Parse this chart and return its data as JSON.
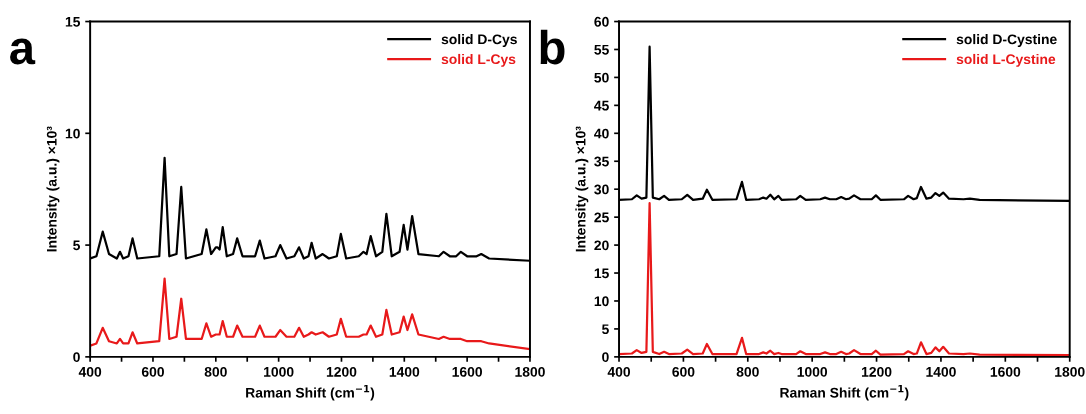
{
  "chart_data": [
    {
      "type": "line",
      "xlabel": "Raman Shift (cm$^{−1}$)",
      "ylabel": "Intensity (a.u.) ×10³",
      "annotations": [
        "a"
      ],
      "xlim": [
        400,
        1800
      ],
      "xticks": [
        400,
        {
          "value": 500,
          "label": null
        },
        600,
        {
          "value": 700,
          "label": null
        },
        800,
        {
          "value": 900,
          "label": null
        },
        1000,
        {
          "value": 1100,
          "label": null
        },
        1200,
        {
          "value": 1300,
          "label": null
        },
        1400,
        {
          "value": 1500,
          "label": null
        },
        1600,
        {
          "value": 1700,
          "label": null
        },
        1800
      ],
      "ylim": [
        0,
        15
      ],
      "yticks": [
        0,
        5,
        10,
        15
      ],
      "legend": "top right",
      "grid": false,
      "line_style": "solid",
      "series": [
        {
          "name": "solid D-Cys",
          "color": "#000000",
          "x": [
            400,
            420,
            440,
            460,
            485,
            495,
            505,
            522,
            535,
            550,
            620,
            637,
            652,
            675,
            690,
            705,
            755,
            770,
            785,
            800,
            805,
            812,
            822,
            835,
            855,
            868,
            885,
            925,
            940,
            955,
            990,
            1005,
            1025,
            1050,
            1065,
            1080,
            1095,
            1105,
            1118,
            1140,
            1160,
            1185,
            1198,
            1215,
            1255,
            1270,
            1280,
            1293,
            1310,
            1330,
            1343,
            1360,
            1385,
            1398,
            1410,
            1425,
            1445,
            1510,
            1525,
            1545,
            1565,
            1580,
            1600,
            1630,
            1645,
            1670,
            1800
          ],
          "values": [
            4.4,
            4.5,
            5.6,
            4.6,
            4.4,
            4.7,
            4.4,
            4.5,
            5.3,
            4.4,
            4.5,
            8.9,
            4.5,
            4.6,
            7.6,
            4.4,
            4.6,
            5.7,
            4.6,
            4.9,
            4.9,
            4.8,
            5.8,
            4.5,
            4.6,
            5.3,
            4.5,
            4.5,
            5.2,
            4.4,
            4.5,
            5.0,
            4.4,
            4.5,
            4.9,
            4.4,
            4.5,
            5.1,
            4.4,
            4.6,
            4.4,
            4.5,
            5.5,
            4.4,
            4.5,
            4.7,
            4.6,
            5.4,
            4.5,
            4.7,
            6.4,
            4.5,
            4.7,
            5.9,
            4.8,
            6.3,
            4.6,
            4.5,
            4.7,
            4.5,
            4.5,
            4.7,
            4.5,
            4.5,
            4.6,
            4.4,
            4.3
          ]
        },
        {
          "name": "solid L-Cys",
          "color": "#e8191a",
          "x": [
            400,
            420,
            440,
            460,
            485,
            495,
            505,
            522,
            535,
            550,
            620,
            637,
            652,
            675,
            690,
            705,
            755,
            770,
            785,
            800,
            805,
            812,
            822,
            835,
            855,
            868,
            885,
            925,
            940,
            955,
            990,
            1005,
            1025,
            1050,
            1065,
            1080,
            1095,
            1105,
            1118,
            1140,
            1160,
            1185,
            1198,
            1215,
            1255,
            1270,
            1280,
            1293,
            1310,
            1330,
            1343,
            1360,
            1385,
            1398,
            1410,
            1425,
            1445,
            1510,
            1525,
            1545,
            1565,
            1580,
            1600,
            1630,
            1645,
            1670,
            1800
          ],
          "values": [
            0.5,
            0.6,
            1.3,
            0.7,
            0.6,
            0.8,
            0.6,
            0.6,
            1.1,
            0.6,
            0.7,
            3.5,
            0.8,
            0.9,
            2.6,
            0.8,
            0.8,
            1.5,
            0.9,
            1.0,
            1.0,
            1.0,
            1.6,
            0.9,
            0.9,
            1.4,
            0.9,
            0.9,
            1.4,
            0.9,
            0.9,
            1.2,
            0.9,
            0.9,
            1.3,
            0.9,
            1.0,
            1.1,
            1.0,
            1.1,
            0.9,
            1.0,
            1.7,
            0.9,
            0.9,
            1.0,
            1.0,
            1.4,
            0.9,
            1.0,
            2.1,
            1.0,
            1.1,
            1.8,
            1.2,
            1.9,
            1.0,
            0.8,
            0.9,
            0.8,
            0.8,
            0.8,
            0.7,
            0.7,
            0.7,
            0.6,
            0.35
          ]
        }
      ]
    },
    {
      "type": "line",
      "xlabel": "Raman Shift (cm$^{−1}$)",
      "ylabel": "Intensity (a.u.) ×10³",
      "annotations": [
        "b"
      ],
      "xlim": [
        400,
        1800
      ],
      "xticks": [
        400,
        {
          "value": 500,
          "label": null
        },
        600,
        {
          "value": 700,
          "label": null
        },
        800,
        {
          "value": 900,
          "label": null
        },
        1000,
        {
          "value": 1100,
          "label": null
        },
        1200,
        {
          "value": 1300,
          "label": null
        },
        1400,
        {
          "value": 1500,
          "label": null
        },
        1600,
        {
          "value": 1700,
          "label": null
        },
        1800
      ],
      "ylim": [
        0,
        60
      ],
      "yticks": [
        0,
        5,
        10,
        15,
        20,
        25,
        30,
        35,
        40,
        45,
        50,
        55,
        60
      ],
      "legend": "top right",
      "grid": false,
      "line_style": "solid",
      "series": [
        {
          "name": "solid D-Cystine",
          "color": "#000000",
          "x": [
            400,
            440,
            455,
            470,
            485,
            495,
            505,
            525,
            540,
            555,
            595,
            612,
            630,
            660,
            673,
            690,
            765,
            782,
            795,
            835,
            848,
            858,
            870,
            882,
            895,
            905,
            950,
            963,
            980,
            1025,
            1040,
            1055,
            1075,
            1090,
            1105,
            1115,
            1130,
            1150,
            1185,
            1198,
            1212,
            1285,
            1298,
            1315,
            1325,
            1338,
            1355,
            1370,
            1383,
            1395,
            1407,
            1425,
            1470,
            1490,
            1520,
            1800
          ],
          "values": [
            28.1,
            28.2,
            28.9,
            28.3,
            28.5,
            55.5,
            28.5,
            28.2,
            28.8,
            28.1,
            28.2,
            29.0,
            28.1,
            28.3,
            29.9,
            28.1,
            28.2,
            31.3,
            28.1,
            28.2,
            28.5,
            28.3,
            29.0,
            28.2,
            28.8,
            28.1,
            28.2,
            28.8,
            28.1,
            28.2,
            28.5,
            28.2,
            28.2,
            28.6,
            28.2,
            28.3,
            28.9,
            28.2,
            28.2,
            28.9,
            28.1,
            28.2,
            28.8,
            28.2,
            28.4,
            30.4,
            28.3,
            28.5,
            29.3,
            28.8,
            29.4,
            28.3,
            28.2,
            28.3,
            28.1,
            27.9
          ]
        },
        {
          "name": "solid L-Cystine",
          "color": "#e8191a",
          "x": [
            400,
            440,
            455,
            470,
            485,
            495,
            505,
            525,
            540,
            555,
            595,
            612,
            630,
            660,
            673,
            690,
            765,
            782,
            795,
            835,
            848,
            858,
            870,
            882,
            895,
            905,
            950,
            963,
            980,
            1025,
            1040,
            1055,
            1075,
            1090,
            1105,
            1115,
            1130,
            1150,
            1185,
            1198,
            1212,
            1285,
            1298,
            1315,
            1325,
            1338,
            1355,
            1370,
            1383,
            1395,
            1407,
            1425,
            1470,
            1490,
            1520,
            1800
          ],
          "values": [
            0.5,
            0.6,
            1.2,
            0.7,
            0.9,
            27.5,
            0.9,
            0.5,
            0.9,
            0.5,
            0.6,
            1.3,
            0.5,
            0.6,
            2.3,
            0.5,
            0.5,
            3.4,
            0.5,
            0.5,
            0.8,
            0.6,
            1.1,
            0.5,
            0.7,
            0.5,
            0.5,
            1.0,
            0.5,
            0.5,
            0.8,
            0.5,
            0.5,
            0.9,
            0.5,
            0.6,
            1.2,
            0.5,
            0.5,
            1.1,
            0.4,
            0.5,
            1.0,
            0.5,
            0.6,
            2.6,
            0.5,
            0.7,
            1.7,
            1.0,
            1.8,
            0.6,
            0.5,
            0.6,
            0.4,
            0.3
          ]
        }
      ]
    }
  ]
}
